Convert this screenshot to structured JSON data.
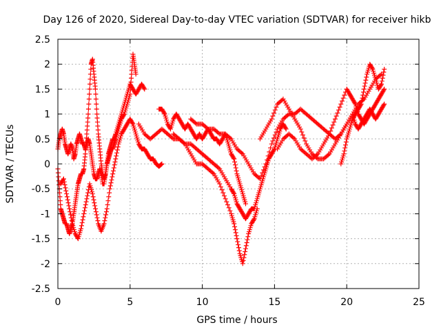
{
  "chart_data": {
    "type": "scatter",
    "title": "Day 126 of 2020, Sidereal Day-to-day VTEC variation (SDTVAR) for receiver hikb",
    "xlabel": "GPS time / hours",
    "ylabel": "SDTVAR / TECUs",
    "xlim": [
      0,
      25
    ],
    "ylim": [
      -2.5,
      2.5
    ],
    "xticks": [
      "0",
      "5",
      "10",
      "15",
      "20",
      "25"
    ],
    "xtick_values": [
      0,
      5,
      10,
      15,
      20,
      25
    ],
    "yticks": [
      "-2.5",
      "-2",
      "-1.5",
      "-1",
      "-0.5",
      "0",
      "0.5",
      "1",
      "1.5",
      "2",
      "2.5"
    ],
    "ytick_values": [
      -2.5,
      -2,
      -1.5,
      -1,
      -0.5,
      0,
      0.5,
      1,
      1.5,
      2,
      2.5
    ],
    "grid": true,
    "marker": "plus",
    "series_color": "#ff0000",
    "series": [
      {
        "x": [
          0.0,
          0.1,
          0.2,
          0.3,
          0.4,
          0.5,
          0.6,
          0.7,
          0.8,
          0.9,
          1.0,
          1.1,
          1.2,
          1.3,
          1.4,
          1.5,
          1.6,
          1.7,
          1.8,
          1.9,
          2.0,
          2.1,
          2.2,
          2.3,
          2.4,
          2.5,
          2.6,
          2.7,
          2.8,
          2.9,
          3.0,
          3.1,
          3.2,
          3.3,
          3.4,
          3.5,
          3.6,
          3.7,
          3.8,
          3.9,
          4.0,
          4.2,
          4.4,
          4.6,
          4.8,
          5.0,
          5.2,
          5.4,
          5.6,
          5.8,
          6.0
        ],
        "y": [
          0.3,
          0.5,
          0.6,
          0.7,
          0.6,
          0.4,
          0.3,
          0.2,
          0.3,
          0.4,
          0.3,
          0.1,
          0.2,
          0.4,
          0.5,
          0.6,
          0.5,
          0.4,
          0.4,
          0.3,
          0.4,
          0.5,
          0.4,
          0.2,
          0.0,
          -0.2,
          -0.3,
          -0.3,
          -0.2,
          -0.1,
          -0.2,
          -0.4,
          -0.4,
          -0.2,
          0.0,
          0.2,
          0.3,
          0.4,
          0.5,
          0.5,
          0.6,
          0.8,
          1.0,
          1.2,
          1.4,
          1.6,
          1.5,
          1.4,
          1.5,
          1.6,
          1.5
        ]
      },
      {
        "x": [
          0.0,
          0.1,
          0.2,
          0.3,
          0.4,
          0.5,
          0.6,
          0.7,
          0.8,
          0.9,
          1.0,
          1.1,
          1.2,
          1.3,
          1.4,
          1.5,
          1.6,
          1.7,
          1.8,
          1.9,
          2.0,
          2.1,
          2.2,
          2.3,
          2.4,
          2.5,
          2.6,
          2.7,
          2.8,
          2.9,
          3.0,
          3.1,
          3.2,
          3.3,
          3.4,
          3.5,
          3.6,
          3.7,
          3.8,
          3.9,
          4.0,
          4.2,
          4.4,
          4.6,
          4.8,
          5.0,
          5.1,
          5.2,
          5.3,
          5.4
        ],
        "y": [
          -0.1,
          -0.5,
          -0.9,
          -1.0,
          -1.1,
          -1.2,
          -1.2,
          -1.3,
          -1.4,
          -1.3,
          -1.2,
          -1.0,
          -0.8,
          -0.6,
          -0.4,
          -0.3,
          -0.2,
          -0.2,
          -0.1,
          0.2,
          0.6,
          1.0,
          1.5,
          2.0,
          2.1,
          1.8,
          1.5,
          1.0,
          0.6,
          0.3,
          0.0,
          -0.2,
          -0.3,
          -0.2,
          0.0,
          0.1,
          0.2,
          0.3,
          0.3,
          0.4,
          0.5,
          0.7,
          0.9,
          1.0,
          1.2,
          1.4,
          1.8,
          2.2,
          2.0,
          1.8
        ]
      },
      {
        "x": [
          0.2,
          0.4,
          0.6,
          0.8,
          1.0,
          1.2,
          1.4,
          1.6,
          1.8,
          2.0,
          2.2,
          2.4,
          2.6,
          2.8,
          3.0,
          3.2,
          3.4,
          3.6,
          3.8,
          4.0,
          4.2,
          4.4,
          4.6,
          4.8,
          5.0,
          5.2,
          5.4,
          5.6,
          5.8,
          6.0,
          6.2,
          6.4,
          6.6,
          6.8,
          7.0,
          7.2
        ],
        "y": [
          -0.4,
          -0.3,
          -0.6,
          -0.9,
          -1.2,
          -1.4,
          -1.5,
          -1.3,
          -1.0,
          -0.7,
          -0.4,
          -0.6,
          -0.9,
          -1.2,
          -1.35,
          -1.2,
          -0.9,
          -0.5,
          -0.2,
          0.1,
          0.4,
          0.6,
          0.7,
          0.8,
          0.9,
          0.8,
          0.6,
          0.4,
          0.3,
          0.3,
          0.2,
          0.1,
          0.1,
          0.0,
          -0.05,
          0.0
        ]
      },
      {
        "x": [
          5.6,
          6.0,
          6.4,
          6.8,
          7.2,
          7.6,
          8.0,
          8.4,
          8.8,
          9.2,
          9.6,
          10.0,
          10.4,
          10.8,
          11.2,
          11.6,
          12.0,
          12.2,
          12.4,
          12.6,
          12.8,
          13.0,
          13.2,
          13.4,
          13.6,
          13.8,
          14.0,
          14.2,
          14.4,
          14.6,
          14.8,
          15.0,
          15.2,
          15.4,
          15.6,
          15.8
        ],
        "y": [
          0.8,
          0.6,
          0.5,
          0.6,
          0.7,
          0.6,
          0.5,
          0.5,
          0.4,
          0.4,
          0.3,
          0.2,
          0.1,
          0.0,
          -0.1,
          -0.3,
          -0.5,
          -0.6,
          -0.8,
          -0.9,
          -1.0,
          -1.1,
          -1.0,
          -0.9,
          -0.9,
          -0.7,
          -0.5,
          -0.3,
          -0.1,
          0.1,
          0.2,
          0.3,
          0.5,
          0.7,
          0.8,
          0.7
        ]
      },
      {
        "x": [
          7.0,
          7.2,
          7.4,
          7.6,
          7.8,
          8.0,
          8.2,
          8.4,
          8.6,
          8.8,
          9.0,
          9.2,
          9.4,
          9.6,
          9.8,
          10.0,
          10.2,
          10.4,
          10.6,
          10.8,
          11.0,
          11.2,
          11.4,
          11.6,
          11.8,
          12.0,
          12.2,
          12.4,
          12.6,
          12.8,
          13.0
        ],
        "y": [
          1.1,
          1.1,
          1.0,
          0.8,
          0.7,
          0.9,
          1.0,
          0.9,
          0.8,
          0.7,
          0.8,
          0.7,
          0.6,
          0.5,
          0.6,
          0.5,
          0.6,
          0.7,
          0.6,
          0.5,
          0.5,
          0.4,
          0.5,
          0.6,
          0.4,
          0.2,
          0.1,
          -0.2,
          -0.4,
          -0.6,
          -0.8
        ]
      },
      {
        "x": [
          8.0,
          8.4,
          8.8,
          9.2,
          9.6,
          10.0,
          10.4,
          10.8,
          11.2,
          11.6,
          12.0,
          12.2,
          12.4,
          12.6,
          12.8,
          13.0,
          13.2,
          13.4,
          13.6,
          13.8
        ],
        "y": [
          0.6,
          0.5,
          0.4,
          0.2,
          0.0,
          0.0,
          -0.1,
          -0.2,
          -0.4,
          -0.7,
          -1.0,
          -1.2,
          -1.5,
          -1.8,
          -2.0,
          -1.7,
          -1.4,
          -1.2,
          -1.1,
          -0.9
        ]
      },
      {
        "x": [
          9.2,
          9.6,
          10.0,
          10.4,
          10.8,
          11.2,
          11.6,
          12.0,
          12.4,
          12.8,
          13.2,
          13.6,
          14.0,
          14.4,
          14.8,
          15.2,
          15.6,
          16.0,
          16.4,
          16.8,
          17.2,
          17.6,
          18.0,
          18.4,
          18.8,
          19.2,
          19.6,
          20.0
        ],
        "y": [
          0.9,
          0.8,
          0.8,
          0.7,
          0.7,
          0.6,
          0.6,
          0.5,
          0.3,
          0.2,
          0.0,
          -0.2,
          -0.3,
          0.0,
          0.4,
          0.7,
          0.9,
          1.0,
          1.0,
          1.1,
          1.0,
          0.9,
          0.8,
          0.7,
          0.6,
          0.5,
          0.6,
          0.8
        ]
      },
      {
        "x": [
          14.0,
          14.4,
          14.8,
          15.2,
          15.6,
          16.0,
          16.4,
          16.8,
          17.2,
          17.6,
          18.0,
          18.4,
          18.8,
          19.2,
          19.6,
          20.0,
          20.4,
          20.8,
          21.2,
          21.6,
          22.0,
          22.4
        ],
        "y": [
          0.5,
          0.7,
          0.9,
          1.2,
          1.3,
          1.1,
          0.9,
          0.7,
          0.4,
          0.2,
          0.1,
          0.1,
          0.2,
          0.4,
          0.6,
          0.8,
          1.0,
          1.2,
          1.3,
          1.5,
          1.7,
          1.8
        ]
      },
      {
        "x": [
          15.2,
          15.6,
          16.0,
          16.4,
          16.8,
          17.2,
          17.6,
          18.0,
          18.4,
          18.8,
          19.2,
          19.6,
          20.0,
          20.2,
          20.4,
          20.6,
          20.8,
          21.0,
          21.2,
          21.4,
          21.6,
          21.8,
          22.0,
          22.2,
          22.4,
          22.6
        ],
        "y": [
          0.3,
          0.5,
          0.6,
          0.5,
          0.3,
          0.2,
          0.1,
          0.2,
          0.4,
          0.6,
          0.9,
          1.2,
          1.5,
          1.4,
          1.3,
          1.2,
          1.0,
          0.9,
          0.8,
          0.9,
          1.0,
          1.1,
          1.2,
          1.3,
          1.4,
          1.5
        ]
      },
      {
        "x": [
          19.6,
          19.8,
          20.0,
          20.2,
          20.4,
          20.6,
          20.8,
          21.0,
          21.2,
          21.4,
          21.6,
          21.8,
          22.0,
          22.2,
          22.4,
          22.6
        ],
        "y": [
          0.0,
          0.2,
          0.5,
          0.7,
          0.9,
          1.0,
          1.1,
          1.2,
          1.5,
          1.8,
          2.0,
          1.9,
          1.7,
          1.5,
          1.6,
          1.9
        ]
      },
      {
        "x": [
          20.4,
          20.6,
          20.8,
          21.0,
          21.2,
          21.4,
          21.6,
          21.8,
          22.0,
          22.2,
          22.4,
          22.6
        ],
        "y": [
          1.0,
          0.8,
          0.7,
          0.8,
          0.9,
          1.0,
          1.1,
          1.0,
          0.9,
          1.0,
          1.1,
          1.2
        ]
      }
    ]
  }
}
